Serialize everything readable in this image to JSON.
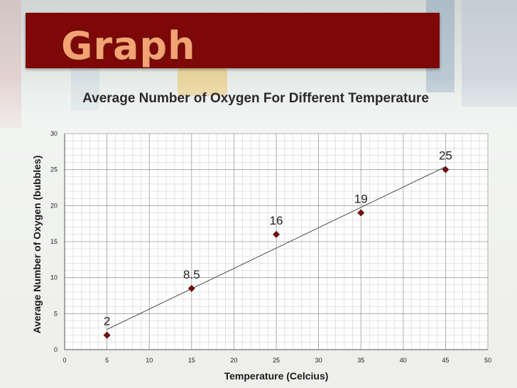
{
  "slide": {
    "heading": "Graph"
  },
  "colors": {
    "banner": "#7e0707",
    "heading_text": "#f2a273",
    "marker": "#7a0e0e",
    "grid_minor": "#c8c8c8",
    "grid_major": "#9a9a9a"
  },
  "chart_data": {
    "type": "scatter",
    "title": "Average Number of Oxygen For Different Temperature",
    "xlabel": "Temperature (Celcius)",
    "ylabel": "Average Number of Oxygen (bubbles)",
    "xlim": [
      0,
      50
    ],
    "ylim": [
      0,
      30
    ],
    "xticks": [
      0,
      5,
      10,
      15,
      20,
      25,
      30,
      35,
      40,
      45,
      50
    ],
    "yticks": [
      0,
      5,
      10,
      15,
      20,
      25,
      30
    ],
    "grid": true,
    "trendline": true,
    "x": [
      5,
      15,
      25,
      35,
      45
    ],
    "y": [
      2,
      8.5,
      16,
      19,
      25
    ],
    "point_labels": [
      "2",
      "8.5",
      "16",
      "19",
      "25"
    ]
  }
}
